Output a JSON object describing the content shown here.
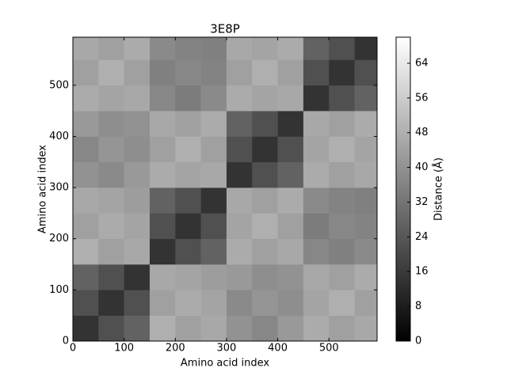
{
  "chart_data": {
    "type": "heatmap",
    "title": "3E8P",
    "xlabel": "Amino acid index",
    "ylabel": "Amino acid index",
    "xbins": [
      0,
      50,
      100,
      150,
      200,
      250,
      300,
      350,
      400,
      450,
      500,
      550,
      594
    ],
    "ybins": [
      0,
      50,
      100,
      150,
      200,
      250,
      300,
      350,
      400,
      450,
      500,
      550,
      594
    ],
    "xlim": [
      0,
      594
    ],
    "ylim": [
      0,
      594
    ],
    "xticks": [
      0,
      100,
      200,
      300,
      400,
      500
    ],
    "yticks": [
      0,
      100,
      200,
      300,
      400,
      500
    ],
    "values": [
      [
        14,
        22,
        27,
        48,
        44,
        46,
        40,
        37,
        42,
        47,
        44,
        46
      ],
      [
        22,
        14,
        22,
        44,
        47,
        45,
        38,
        41,
        39,
        45,
        48,
        44
      ],
      [
        27,
        22,
        14,
        46,
        45,
        43,
        42,
        39,
        40,
        46,
        44,
        47
      ],
      [
        48,
        44,
        46,
        14,
        22,
        27,
        47,
        44,
        46,
        37,
        35,
        38
      ],
      [
        44,
        47,
        45,
        22,
        14,
        22,
        45,
        48,
        44,
        34,
        37,
        36
      ],
      [
        46,
        45,
        43,
        27,
        22,
        14,
        46,
        44,
        47,
        38,
        36,
        35
      ],
      [
        40,
        38,
        42,
        47,
        45,
        46,
        14,
        22,
        27,
        47,
        44,
        46
      ],
      [
        37,
        41,
        39,
        44,
        48,
        44,
        22,
        14,
        22,
        45,
        48,
        45
      ],
      [
        42,
        39,
        40,
        46,
        44,
        47,
        27,
        22,
        14,
        46,
        44,
        47
      ],
      [
        47,
        45,
        46,
        37,
        34,
        38,
        47,
        45,
        46,
        14,
        22,
        27
      ],
      [
        44,
        48,
        44,
        35,
        37,
        36,
        44,
        48,
        44,
        22,
        14,
        22
      ],
      [
        46,
        44,
        47,
        38,
        36,
        35,
        46,
        45,
        47,
        27,
        22,
        14
      ]
    ],
    "cmap": "gray",
    "clim": [
      0,
      70
    ],
    "colorbar_label": "Distance (Å)",
    "colorbar_ticks": [
      0,
      8,
      16,
      24,
      32,
      40,
      48,
      56,
      64
    ]
  }
}
